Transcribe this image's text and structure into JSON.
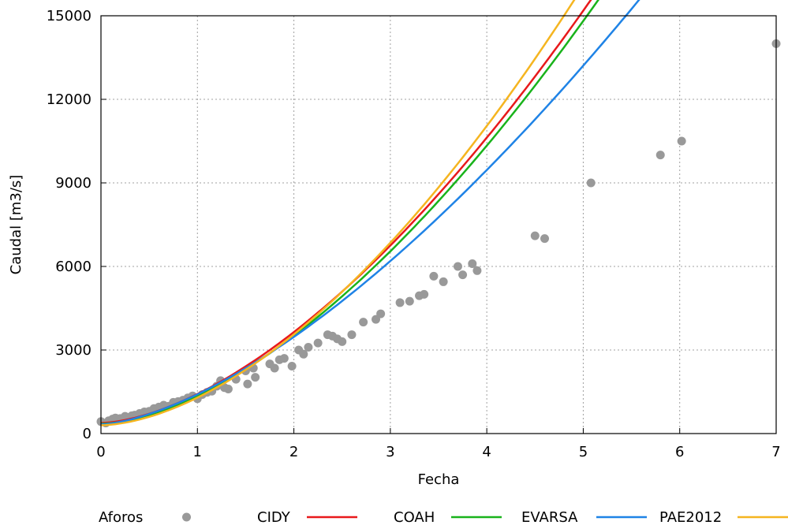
{
  "chart_data": {
    "type": "line",
    "title": "",
    "xlabel": "Fecha",
    "ylabel": "Caudal [m3/s]",
    "xlim": [
      0,
      7
    ],
    "ylim": [
      0,
      15000
    ],
    "xticks": [
      0,
      1,
      2,
      3,
      4,
      5,
      6,
      7
    ],
    "yticks": [
      0,
      3000,
      6000,
      9000,
      12000,
      15000
    ],
    "grid": true,
    "legend_position": "bottom",
    "series": [
      {
        "name": "Aforos",
        "kind": "scatter",
        "color": "#999999",
        "points": [
          [
            0.0,
            430
          ],
          [
            0.05,
            380
          ],
          [
            0.08,
            460
          ],
          [
            0.12,
            520
          ],
          [
            0.15,
            560
          ],
          [
            0.2,
            540
          ],
          [
            0.25,
            620
          ],
          [
            0.28,
            580
          ],
          [
            0.32,
            640
          ],
          [
            0.35,
            660
          ],
          [
            0.4,
            720
          ],
          [
            0.45,
            780
          ],
          [
            0.5,
            800
          ],
          [
            0.55,
            900
          ],
          [
            0.6,
            950
          ],
          [
            0.65,
            1020
          ],
          [
            0.7,
            980
          ],
          [
            0.75,
            1120
          ],
          [
            0.8,
            1150
          ],
          [
            0.85,
            1200
          ],
          [
            0.9,
            1280
          ],
          [
            0.95,
            1350
          ],
          [
            1.0,
            1250
          ],
          [
            1.05,
            1400
          ],
          [
            1.1,
            1480
          ],
          [
            1.15,
            1520
          ],
          [
            1.2,
            1700
          ],
          [
            1.24,
            1900
          ],
          [
            1.28,
            1650
          ],
          [
            1.32,
            1600
          ],
          [
            1.4,
            1950
          ],
          [
            1.5,
            2250
          ],
          [
            1.52,
            1780
          ],
          [
            1.58,
            2350
          ],
          [
            1.6,
            2020
          ],
          [
            1.75,
            2500
          ],
          [
            1.8,
            2350
          ],
          [
            1.85,
            2650
          ],
          [
            1.9,
            2700
          ],
          [
            1.98,
            2420
          ],
          [
            2.05,
            3000
          ],
          [
            2.1,
            2850
          ],
          [
            2.15,
            3100
          ],
          [
            2.25,
            3250
          ],
          [
            2.35,
            3550
          ],
          [
            2.4,
            3500
          ],
          [
            2.45,
            3400
          ],
          [
            2.5,
            3300
          ],
          [
            2.6,
            3550
          ],
          [
            2.72,
            4000
          ],
          [
            2.85,
            4100
          ],
          [
            2.9,
            4300
          ],
          [
            3.1,
            4700
          ],
          [
            3.2,
            4750
          ],
          [
            3.3,
            4950
          ],
          [
            3.35,
            5000
          ],
          [
            3.45,
            5650
          ],
          [
            3.55,
            5450
          ],
          [
            3.7,
            6000
          ],
          [
            3.75,
            5700
          ],
          [
            3.85,
            6100
          ],
          [
            3.9,
            5850
          ],
          [
            4.5,
            7100
          ],
          [
            4.6,
            7000
          ],
          [
            5.08,
            9000
          ],
          [
            5.8,
            10000
          ],
          [
            6.02,
            10500
          ],
          [
            7.0,
            14000
          ]
        ]
      },
      {
        "name": "CIDY",
        "kind": "line",
        "color": "#e8191b",
        "a": 380,
        "b": 1040,
        "c": 1.65
      },
      {
        "name": "COAH",
        "kind": "line",
        "color": "#19b31b",
        "a": 350,
        "b": 1000,
        "c": 1.66
      },
      {
        "name": "EVARSA",
        "kind": "line",
        "color": "#1f83e6",
        "a": 330,
        "b": 1080,
        "c": 1.54
      },
      {
        "name": "PAE2012",
        "kind": "line",
        "color": "#f5b520",
        "a": 300,
        "b": 990,
        "c": 1.72
      }
    ]
  }
}
